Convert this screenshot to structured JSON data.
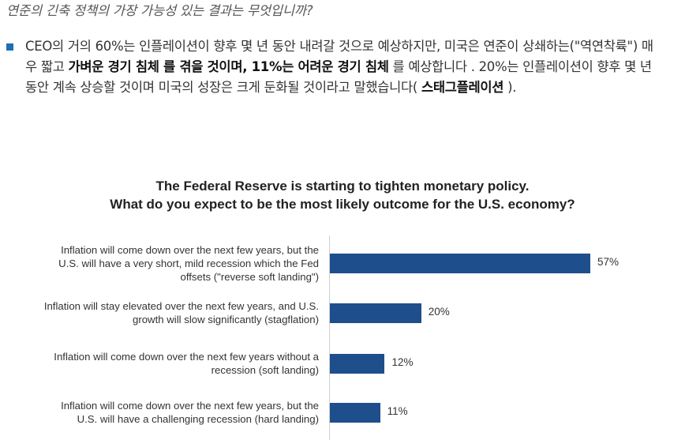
{
  "question": "연준의 긴축 정책의 가장 가능성 있는 결과는 무엇입니까?",
  "bullet": {
    "seg1": "CEO의 거의 60%는 인플레이션이 향후 몇 년 동안 내려갈 것으로 예상하지만, 미국은 연준이 상쇄하는(\"역연착륙\") 매우 짧고 ",
    "bold1": "가벼운 경기 침체 를 겪을 것이며, 11%는 어려운 경기 침체",
    "seg2": " 를 예상합니다 . 20%는 인플레이션이 향후 몇 년 동안 계속 상승할 것이며 미국의 성장은 크게 둔화될 것이라고 말했습니다( ",
    "bold2": "스태그플레이션",
    "seg3": " )."
  },
  "chart_data": {
    "type": "bar",
    "orientation": "horizontal",
    "title": "The Federal Reserve is starting to tighten monetary policy.",
    "subtitle": "What do you expect to be the most likely outcome for the U.S. economy?",
    "categories": [
      [
        "Inflation will come down over the next few years, but the",
        "U.S. will have a very short, mild recession which the Fed",
        "offsets (\"reverse soft landing\")"
      ],
      [
        "Inflation will stay elevated over the next few years, and U.S.",
        "growth will slow significantly (stagflation)"
      ],
      [
        "Inflation will come down over the next few years without a",
        "recession (soft landing)"
      ],
      [
        "Inflation will come down over the next few years, but the",
        "U.S. will have a challenging recession (hard landing)"
      ]
    ],
    "values": [
      57,
      20,
      12,
      11
    ],
    "value_labels": [
      "57%",
      "20%",
      "12%",
      "11%"
    ],
    "bar_color": "#1f4e8c",
    "xlim": [
      0,
      60
    ]
  }
}
